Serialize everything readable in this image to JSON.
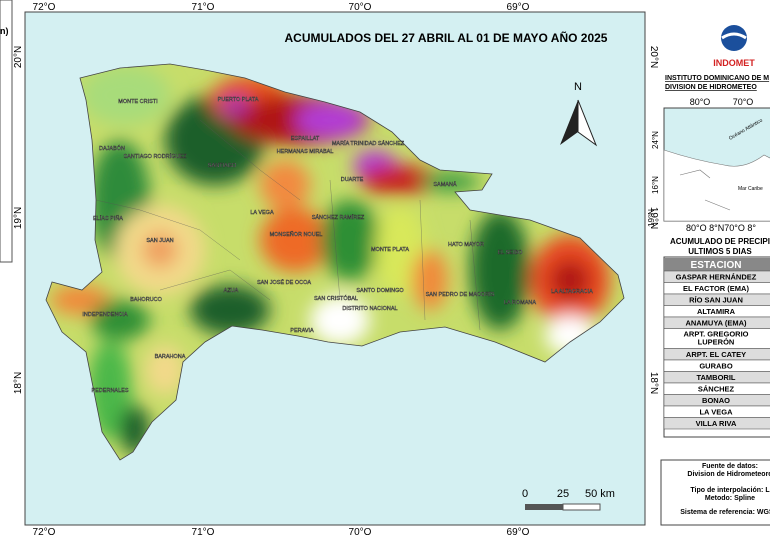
{
  "header": {
    "title": "ACUMULADOS DEL 27  ABRIL AL 01  DE MAYO AÑO 2025",
    "left_fragment": "n)"
  },
  "map": {
    "lon_labels": [
      "72°O",
      "71°O",
      "70°O",
      "69°O"
    ],
    "lat_labels": [
      "20°N",
      "19°N",
      "18°N"
    ],
    "province_labels": [
      "MONTE CRISTI",
      "PUERTO PLATA",
      "DAJABÓN",
      "SANTIAGO RODRÍGUEZ",
      "SANTIAGO",
      "ESPAILLAT",
      "HERMANAS MIRABAL",
      "MARÍA TRINIDAD SÁNCHEZ",
      "DUARTE",
      "SAMANÁ",
      "LA VEGA",
      "SÁNCHEZ RAMÍREZ",
      "MONSEÑOR NOUEL",
      "MONTE PLATA",
      "HATO MAYOR",
      "EL SEIBO",
      "ELÍAS PIÑA",
      "SAN JUAN",
      "AZUA",
      "SAN JOSÉ DE OCOA",
      "SANTO DOMINGO",
      "SAN PEDRO DE MACORÍS",
      "LA ALTAGRACIA",
      "LA ROMANA",
      "INDEPENDENCIA",
      "BAHORUCO",
      "SAN CRISTÓBAL",
      "DISTRITO NACIONAL",
      "PERAVIA",
      "BARAHONA",
      "PEDERNALES"
    ],
    "north": "N",
    "scale_labels": [
      "0",
      "25",
      "50 km"
    ]
  },
  "panel": {
    "logo": "INDOMET",
    "institute_lines": [
      "INSTITUTO DOMINICANO DE M",
      "DIVISION DE HIDROMETEO"
    ],
    "inset": {
      "top_labels": [
        "80°O",
        "70°O"
      ],
      "side_labels": [
        "24°N",
        "16°N"
      ],
      "bottom_label": "80°O    8°N70°O   8°",
      "right_label": "19°N",
      "ocean": "Océano Atlántico",
      "sea": "Mar Caribe"
    },
    "table_title": [
      "ACUMULADO DE PRECIPI",
      "ULTIMOS 5 DIAS"
    ],
    "table_header": "ESTACION",
    "stations": [
      "GASPAR HERNÁNDEZ",
      "EL FACTOR (EMA)",
      "RÍO SAN JUAN",
      "ALTAMIRA",
      "ANAMUYA (EMA)",
      "ARPT. GREGORIO LUPERÓN",
      "ARPT. EL CATEY",
      "GURABO",
      "TAMBORIL",
      "SÁNCHEZ",
      "BONAO",
      "LA VEGA",
      "VILLA RIVA"
    ],
    "notes": [
      "Fuente de datos:",
      "Division de Hidrometeoro",
      "Tipo de interpolación: L",
      "Metodo: Spline",
      "Sistema de referencia: WGS-8"
    ]
  }
}
